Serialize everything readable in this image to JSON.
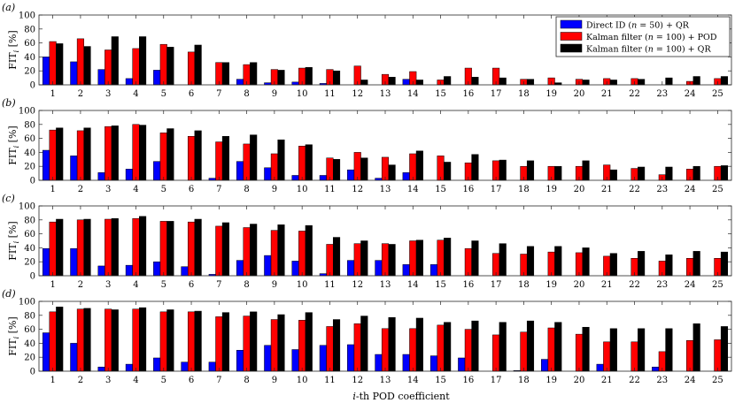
{
  "chart_data": {
    "type": "bar",
    "xlabel_var": "i",
    "xlabel_rest": "-th POD coefficient",
    "ylabel_main": "FIT",
    "ylabel_sub": "i",
    "ylabel_unit": "[%]",
    "categories": [
      1,
      2,
      3,
      4,
      5,
      6,
      7,
      8,
      9,
      10,
      11,
      12,
      13,
      14,
      15,
      16,
      17,
      18,
      19,
      20,
      21,
      22,
      23,
      24,
      25
    ],
    "ylim": [
      0,
      100
    ],
    "yticks": [
      0,
      20,
      40,
      60,
      80,
      100
    ],
    "grid": false,
    "legend_position": "top-right",
    "legend": [
      {
        "name_pre": "Direct ID (",
        "name_var": "n",
        "name_post": " = 50) + QR",
        "color": "#0000ff"
      },
      {
        "name_pre": "Kalman filter (",
        "name_var": "n",
        "name_post": " = 100) + POD",
        "color": "#ff0000"
      },
      {
        "name_pre": "Kalman filter (",
        "name_var": "n",
        "name_post": " = 100) + QR",
        "color": "#000000"
      }
    ],
    "panels": [
      {
        "label": "(a)",
        "series": [
          {
            "color": "#0000ff",
            "values": [
              40,
              33,
              22,
              9,
              21,
              0,
              0,
              8,
              3,
              4,
              2,
              0,
              0,
              8,
              0,
              0,
              0,
              0,
              0,
              0,
              0,
              0,
              0,
              0,
              0
            ]
          },
          {
            "color": "#ff0000",
            "values": [
              62,
              66,
              50,
              52,
              58,
              47,
              32,
              29,
              22,
              24,
              22,
              27,
              15,
              19,
              7,
              24,
              24,
              8,
              10,
              8,
              9,
              9,
              0,
              5,
              9
            ]
          },
          {
            "color": "#000000",
            "values": [
              59,
              55,
              69,
              69,
              54,
              57,
              32,
              32,
              21,
              25,
              20,
              7,
              11,
              7,
              12,
              11,
              10,
              8,
              3,
              7,
              7,
              8,
              10,
              12,
              12
            ]
          }
        ]
      },
      {
        "label": "(b)",
        "series": [
          {
            "color": "#0000ff",
            "values": [
              43,
              35,
              11,
              16,
              27,
              0,
              3,
              27,
              18,
              7,
              7,
              15,
              3,
              11,
              0,
              0,
              0,
              0,
              0,
              0,
              0,
              0,
              0,
              0,
              0
            ]
          },
          {
            "color": "#ff0000",
            "values": [
              72,
              71,
              77,
              80,
              68,
              63,
              55,
              52,
              38,
              49,
              32,
              40,
              33,
              38,
              35,
              25,
              28,
              20,
              20,
              20,
              22,
              17,
              8,
              16,
              20
            ]
          },
          {
            "color": "#000000",
            "values": [
              75,
              75,
              78,
              79,
              74,
              71,
              63,
              65,
              58,
              51,
              30,
              32,
              22,
              42,
              26,
              37,
              29,
              28,
              20,
              28,
              15,
              19,
              19,
              20,
              21
            ]
          }
        ]
      },
      {
        "label": "(c)",
        "series": [
          {
            "color": "#0000ff",
            "values": [
              39,
              39,
              14,
              15,
              20,
              13,
              2,
              22,
              29,
              21,
              3,
              22,
              22,
              16,
              16,
              0,
              0,
              0,
              0,
              0,
              0,
              0,
              0,
              0,
              0
            ]
          },
          {
            "color": "#ff0000",
            "values": [
              77,
              80,
              81,
              82,
              78,
              77,
              71,
              69,
              65,
              64,
              45,
              46,
              46,
              50,
              51,
              39,
              32,
              31,
              34,
              33,
              28,
              25,
              21,
              25,
              25
            ]
          },
          {
            "color": "#000000",
            "values": [
              81,
              81,
              82,
              85,
              78,
              81,
              76,
              74,
              73,
              72,
              55,
              50,
              45,
              51,
              54,
              50,
              46,
              42,
              42,
              40,
              32,
              35,
              30,
              35,
              34
            ]
          }
        ]
      },
      {
        "label": "(d)",
        "series": [
          {
            "color": "#0000ff",
            "values": [
              55,
              40,
              6,
              10,
              19,
              13,
              13,
              30,
              37,
              31,
              37,
              38,
              24,
              24,
              22,
              19,
              0,
              1,
              17,
              0,
              10,
              0,
              6,
              0,
              0
            ]
          },
          {
            "color": "#ff0000",
            "values": [
              85,
              89,
              89,
              89,
              85,
              85,
              78,
              79,
              74,
              73,
              64,
              68,
              61,
              61,
              66,
              60,
              52,
              56,
              62,
              53,
              42,
              42,
              28,
              44,
              45
            ]
          },
          {
            "color": "#000000",
            "values": [
              92,
              90,
              88,
              91,
              88,
              86,
              84,
              85,
              81,
              84,
              74,
              79,
              77,
              76,
              70,
              72,
              70,
              72,
              70,
              63,
              61,
              61,
              61,
              68,
              64
            ]
          }
        ]
      }
    ]
  }
}
